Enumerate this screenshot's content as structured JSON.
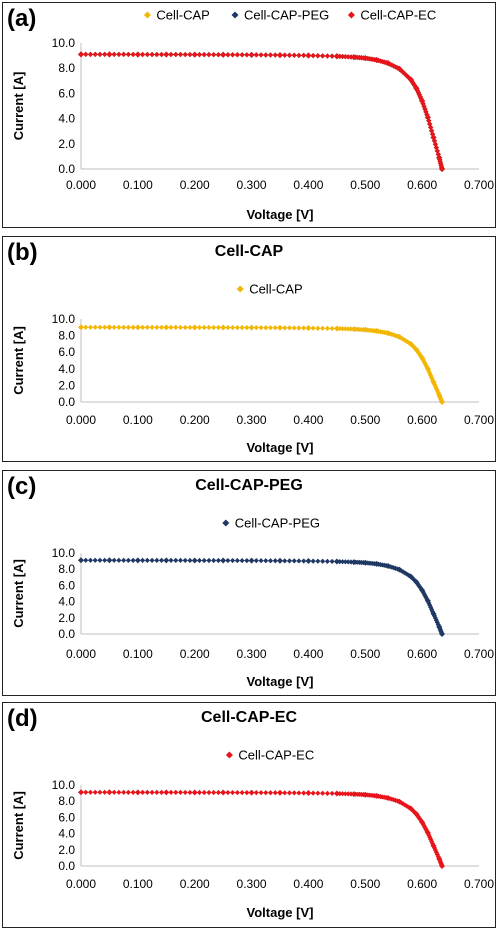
{
  "colors": {
    "cap": "#f2b705",
    "peg": "#1f3864",
    "ec": "#e8141c"
  },
  "chart_data": [
    {
      "type": "scatter",
      "panel_label": "(a)",
      "title": "",
      "xlabel": "Voltage [V]",
      "ylabel": "Current [A]",
      "xlim": [
        0,
        0.7
      ],
      "ylim": [
        0,
        10
      ],
      "xticks": [
        "0.000",
        "0.100",
        "0.200",
        "0.300",
        "0.400",
        "0.500",
        "0.600",
        "0.700"
      ],
      "yticks": [
        "0.0",
        "2.0",
        "4.0",
        "6.0",
        "8.0",
        "10.0"
      ],
      "legend_position": "top",
      "series": [
        {
          "name": "Cell-CAP",
          "color": "#f2b705",
          "x": [
            0.0,
            0.05,
            0.1,
            0.15,
            0.2,
            0.25,
            0.3,
            0.35,
            0.4,
            0.45,
            0.48,
            0.5,
            0.52,
            0.54,
            0.56,
            0.58,
            0.59,
            0.6,
            0.61,
            0.62,
            0.63,
            0.635
          ],
          "y": [
            9.1,
            9.1,
            9.09,
            9.09,
            9.08,
            9.07,
            9.06,
            9.04,
            9.01,
            8.95,
            8.88,
            8.8,
            8.65,
            8.4,
            7.95,
            7.1,
            6.4,
            5.4,
            4.1,
            2.5,
            0.9,
            0.0
          ]
        },
        {
          "name": "Cell-CAP-PEG",
          "color": "#1f3864",
          "x": [
            0.0,
            0.05,
            0.1,
            0.15,
            0.2,
            0.25,
            0.3,
            0.35,
            0.4,
            0.45,
            0.48,
            0.5,
            0.52,
            0.54,
            0.56,
            0.58,
            0.59,
            0.6,
            0.61,
            0.62,
            0.63,
            0.635
          ],
          "y": [
            9.1,
            9.1,
            9.09,
            9.09,
            9.08,
            9.07,
            9.06,
            9.04,
            9.01,
            8.95,
            8.88,
            8.8,
            8.65,
            8.4,
            7.95,
            7.1,
            6.4,
            5.4,
            4.1,
            2.5,
            0.9,
            0.0
          ]
        },
        {
          "name": "Cell-CAP-EC",
          "color": "#e8141c",
          "x": [
            0.0,
            0.05,
            0.1,
            0.15,
            0.2,
            0.25,
            0.3,
            0.35,
            0.4,
            0.45,
            0.48,
            0.5,
            0.52,
            0.54,
            0.56,
            0.58,
            0.59,
            0.6,
            0.61,
            0.62,
            0.63,
            0.635
          ],
          "y": [
            9.1,
            9.1,
            9.09,
            9.09,
            9.08,
            9.07,
            9.06,
            9.04,
            9.01,
            8.95,
            8.88,
            8.8,
            8.65,
            8.4,
            7.95,
            7.1,
            6.4,
            5.4,
            4.1,
            2.5,
            0.9,
            0.0
          ]
        }
      ]
    },
    {
      "type": "scatter",
      "panel_label": "(b)",
      "title": "Cell-CAP",
      "xlabel": "Voltage [V]",
      "ylabel": "Current [A]",
      "xlim": [
        0,
        0.7
      ],
      "ylim": [
        0,
        10
      ],
      "xticks": [
        "0.000",
        "0.100",
        "0.200",
        "0.300",
        "0.400",
        "0.500",
        "0.600",
        "0.700"
      ],
      "yticks": [
        "0.0",
        "2.0",
        "4.0",
        "6.0",
        "8.0",
        "10.0"
      ],
      "legend_position": "top",
      "series": [
        {
          "name": "Cell-CAP",
          "color": "#f2b705",
          "x": [
            0.0,
            0.05,
            0.1,
            0.15,
            0.2,
            0.25,
            0.3,
            0.35,
            0.4,
            0.45,
            0.48,
            0.5,
            0.52,
            0.54,
            0.56,
            0.58,
            0.59,
            0.6,
            0.61,
            0.62,
            0.63,
            0.635
          ],
          "y": [
            9.0,
            9.0,
            8.99,
            8.99,
            8.98,
            8.97,
            8.96,
            8.94,
            8.91,
            8.85,
            8.78,
            8.7,
            8.55,
            8.3,
            7.85,
            7.0,
            6.3,
            5.3,
            4.0,
            2.4,
            0.85,
            0.0
          ]
        }
      ]
    },
    {
      "type": "scatter",
      "panel_label": "(c)",
      "title": "Cell-CAP-PEG",
      "xlabel": "Voltage [V]",
      "ylabel": "Current [A]",
      "xlim": [
        0,
        0.7
      ],
      "ylim": [
        0,
        10
      ],
      "xticks": [
        "0.000",
        "0.100",
        "0.200",
        "0.300",
        "0.400",
        "0.500",
        "0.600",
        "0.700"
      ],
      "yticks": [
        "0.0",
        "2.0",
        "4.0",
        "6.0",
        "8.0",
        "10.0"
      ],
      "legend_position": "top",
      "series": [
        {
          "name": "Cell-CAP-PEG",
          "color": "#1f3864",
          "x": [
            0.0,
            0.05,
            0.1,
            0.15,
            0.2,
            0.25,
            0.3,
            0.35,
            0.4,
            0.45,
            0.48,
            0.5,
            0.52,
            0.54,
            0.56,
            0.58,
            0.59,
            0.6,
            0.61,
            0.62,
            0.63,
            0.635
          ],
          "y": [
            9.1,
            9.1,
            9.09,
            9.09,
            9.08,
            9.07,
            9.06,
            9.04,
            9.01,
            8.95,
            8.88,
            8.8,
            8.65,
            8.4,
            7.95,
            7.1,
            6.4,
            5.4,
            4.1,
            2.5,
            0.9,
            0.0
          ]
        }
      ]
    },
    {
      "type": "scatter",
      "panel_label": "(d)",
      "title": "Cell-CAP-EC",
      "xlabel": "Voltage [V]",
      "ylabel": "Current [A]",
      "xlim": [
        0,
        0.7
      ],
      "ylim": [
        0,
        10
      ],
      "xticks": [
        "0.000",
        "0.100",
        "0.200",
        "0.300",
        "0.400",
        "0.500",
        "0.600",
        "0.700"
      ],
      "yticks": [
        "0.0",
        "2.0",
        "4.0",
        "6.0",
        "8.0",
        "10.0"
      ],
      "legend_position": "top",
      "series": [
        {
          "name": "Cell-CAP-EC",
          "color": "#e8141c",
          "x": [
            0.0,
            0.05,
            0.1,
            0.15,
            0.2,
            0.25,
            0.3,
            0.35,
            0.4,
            0.45,
            0.48,
            0.5,
            0.52,
            0.54,
            0.56,
            0.58,
            0.59,
            0.6,
            0.61,
            0.62,
            0.63,
            0.635
          ],
          "y": [
            9.1,
            9.1,
            9.09,
            9.09,
            9.08,
            9.07,
            9.06,
            9.04,
            9.01,
            8.95,
            8.88,
            8.8,
            8.65,
            8.4,
            7.95,
            7.1,
            6.4,
            5.4,
            4.1,
            2.5,
            0.9,
            0.0
          ]
        }
      ]
    }
  ]
}
